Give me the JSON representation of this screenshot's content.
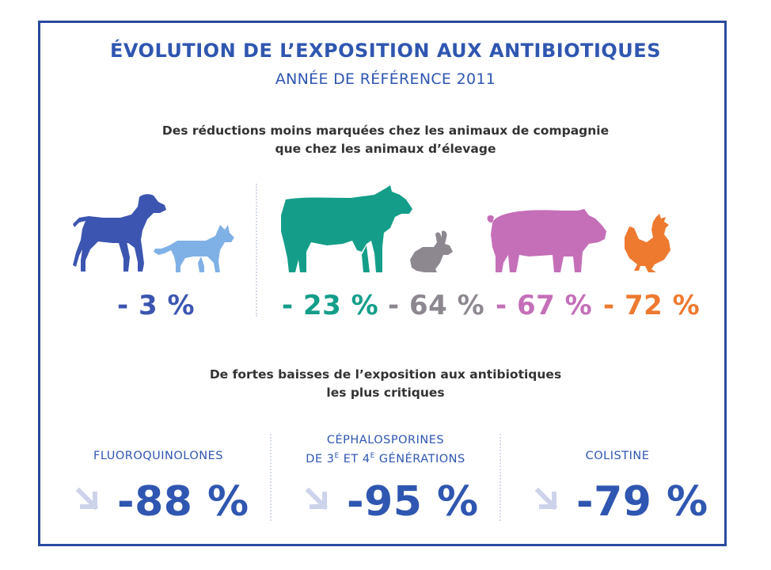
{
  "header": {
    "title": "ÉVOLUTION DE L’EXPOSITION AUX ANTIBIOTIQUES",
    "subtitle": "ANNÉE DE RÉFÉRENCE 2011"
  },
  "section_animals": {
    "heading_line1": "Des réductions moins marquées chez les animaux de compagnie",
    "heading_line2": "que chez les animaux d’élevage",
    "groups": [
      {
        "animals": [
          "dog",
          "cat"
        ],
        "value": "- 3 %",
        "color": "#3b55b0"
      },
      {
        "animals": [
          "cow"
        ],
        "value": "- 23 %",
        "color": "#149e8a"
      },
      {
        "animals": [
          "rabbit"
        ],
        "value": "- 64 %",
        "color": "#8d8790"
      },
      {
        "animals": [
          "pig"
        ],
        "value": "- 67 %",
        "color": "#c46fb8"
      },
      {
        "animals": [
          "chicken"
        ],
        "value": "- 72 %",
        "color": "#ee7a30"
      }
    ],
    "animal_colors": {
      "dog": "#3b55b0",
      "cat": "#7fb1e6",
      "cow": "#149e8a",
      "rabbit": "#8d8790",
      "pig": "#c46fb8",
      "chicken": "#ee7a30"
    }
  },
  "section_critical": {
    "heading_line1": "De fortes baisses de l’exposition aux antibiotiques",
    "heading_line2": "les plus critiques",
    "items": [
      {
        "label_line1": "FLUOROQUINOLONES",
        "label_line2": "",
        "value": "-88 %"
      },
      {
        "label_line1": "CÉPHALOSPORINES",
        "label_line2_prefix": "DE 3",
        "label_line2_sup1": "E",
        "label_line2_mid": " ET 4",
        "label_line2_sup2": "E",
        "label_line2_suffix": " GÉNÉRATIONS",
        "value": "-95 %"
      },
      {
        "label_line1": "COLISTINE",
        "label_line2": "",
        "value": "-79 %"
      }
    ],
    "arrow_icon": "arrow-down-right-icon",
    "arrow_color": "#cdd3ea",
    "value_color": "#2f56b0"
  }
}
